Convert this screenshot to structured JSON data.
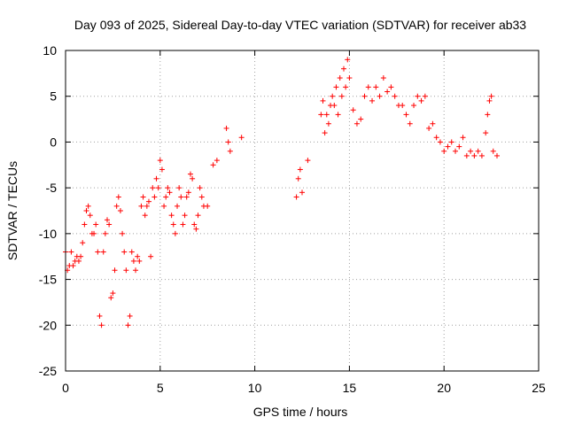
{
  "chart_data": {
    "type": "scatter",
    "title": "Day 093 of 2025, Sidereal Day-to-day VTEC variation (SDTVAR) for receiver ab33",
    "xlabel": "GPS time / hours",
    "ylabel": "SDTVAR / TECUs",
    "xlim": [
      0,
      25
    ],
    "ylim": [
      -25,
      10
    ],
    "xticks": [
      0,
      5,
      10,
      15,
      20,
      25
    ],
    "xtick_labels": [
      "0",
      "5",
      "10",
      "15",
      "20",
      "25"
    ],
    "yticks": [
      -25,
      -20,
      -15,
      -10,
      -5,
      0,
      5,
      10
    ],
    "ytick_labels": [
      "-25",
      "-20",
      "-15",
      "-10",
      "-5",
      "0",
      "5",
      "10"
    ],
    "grid": true,
    "marker": "+",
    "color": "#ff0000",
    "series": [
      {
        "name": "SDTVAR ab33",
        "x": [
          0.0,
          0.1,
          0.2,
          0.3,
          0.4,
          0.5,
          0.6,
          0.7,
          0.8,
          0.9,
          1.0,
          1.1,
          1.2,
          1.3,
          1.4,
          1.5,
          1.6,
          1.7,
          1.8,
          1.9,
          2.0,
          2.1,
          2.2,
          2.3,
          2.4,
          2.5,
          2.6,
          2.7,
          2.8,
          2.9,
          3.0,
          3.1,
          3.2,
          3.3,
          3.4,
          3.5,
          3.6,
          3.7,
          3.8,
          3.9,
          4.0,
          4.1,
          4.2,
          4.3,
          4.4,
          4.5,
          4.6,
          4.7,
          4.8,
          4.9,
          5.0,
          5.1,
          5.2,
          5.3,
          5.4,
          5.5,
          5.6,
          5.7,
          5.8,
          5.9,
          6.0,
          6.1,
          6.2,
          6.3,
          6.4,
          6.5,
          6.6,
          6.7,
          6.8,
          6.9,
          7.0,
          7.1,
          7.2,
          7.3,
          7.5,
          7.8,
          8.0,
          8.5,
          8.6,
          8.7,
          9.3,
          12.2,
          12.3,
          12.4,
          12.5,
          12.8,
          13.5,
          13.6,
          13.7,
          13.8,
          13.9,
          14.0,
          14.1,
          14.2,
          14.3,
          14.4,
          14.5,
          14.6,
          14.7,
          14.8,
          14.9,
          15.0,
          15.2,
          15.4,
          15.6,
          15.8,
          16.0,
          16.2,
          16.4,
          16.6,
          16.8,
          17.0,
          17.2,
          17.4,
          17.6,
          17.8,
          18.0,
          18.2,
          18.4,
          18.6,
          18.8,
          19.0,
          19.2,
          19.4,
          19.6,
          19.8,
          20.0,
          20.2,
          20.4,
          20.6,
          20.8,
          21.0,
          21.2,
          21.4,
          21.6,
          21.8,
          22.0,
          22.2,
          22.3,
          22.4,
          22.5,
          22.6,
          22.8
        ],
        "y": [
          -12.0,
          -14.0,
          -13.5,
          -12.0,
          -13.5,
          -13.0,
          -12.5,
          -13.0,
          -12.5,
          -11.0,
          -9.0,
          -7.5,
          -7.0,
          -8.0,
          -10.0,
          -10.0,
          -9.0,
          -12.0,
          -19.0,
          -20.0,
          -12.0,
          -10.0,
          -8.5,
          -9.0,
          -17.0,
          -16.5,
          -14.0,
          -7.0,
          -6.0,
          -7.5,
          -10.0,
          -12.0,
          -14.0,
          -20.0,
          -19.0,
          -12.0,
          -13.0,
          -14.0,
          -12.5,
          -13.0,
          -7.0,
          -6.0,
          -8.0,
          -7.0,
          -6.5,
          -12.5,
          -5.0,
          -6.0,
          -4.0,
          -5.0,
          -2.0,
          -3.0,
          -7.0,
          -6.0,
          -5.0,
          -5.5,
          -8.0,
          -9.0,
          -10.0,
          -7.0,
          -5.0,
          -6.0,
          -9.0,
          -8.0,
          -6.0,
          -5.5,
          -3.5,
          -4.0,
          -9.0,
          -9.5,
          -8.0,
          -5.0,
          -6.0,
          -7.0,
          -7.0,
          -2.5,
          -2.0,
          1.5,
          0.0,
          -1.0,
          0.5,
          -6.0,
          -4.0,
          -3.0,
          -5.5,
          -2.0,
          3.0,
          4.5,
          1.0,
          3.0,
          2.0,
          4.0,
          5.0,
          4.0,
          6.0,
          3.0,
          7.0,
          5.0,
          8.0,
          6.0,
          9.0,
          7.0,
          3.5,
          2.0,
          2.5,
          5.0,
          6.0,
          4.5,
          6.0,
          5.0,
          7.0,
          5.5,
          6.0,
          5.0,
          4.0,
          4.0,
          3.0,
          2.0,
          4.0,
          5.0,
          4.5,
          5.0,
          1.5,
          2.0,
          0.5,
          0.0,
          -1.0,
          -0.5,
          0.0,
          -1.0,
          -0.5,
          0.5,
          -1.5,
          -1.0,
          -1.5,
          -1.0,
          -1.5,
          1.0,
          3.0,
          4.5,
          5.0,
          -1.0,
          -1.5
        ]
      }
    ]
  }
}
